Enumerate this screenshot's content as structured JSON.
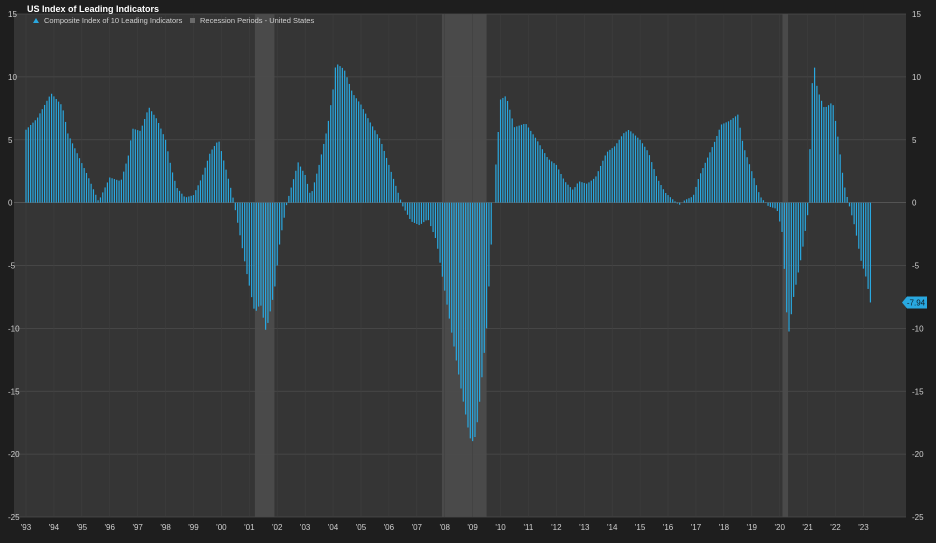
{
  "chart_data": {
    "type": "bar",
    "title": "US Index of Leading Indicators",
    "legend": [
      {
        "label": "Composite Index of 10 Leading Indicators",
        "color": "#29a8e0",
        "marker": "triangle"
      },
      {
        "label": "Recession Periods - United States",
        "color": "#6a6a6a",
        "marker": "square"
      }
    ],
    "legend_placement": "top-left",
    "grid": true,
    "ylim": [
      -25,
      15
    ],
    "yticks": [
      15,
      10,
      5,
      0,
      -5,
      -10,
      -15,
      -20,
      -25
    ],
    "xlim": [
      1993.0,
      2023.45
    ],
    "xticks": [
      {
        "value": 1993,
        "label": "'93"
      },
      {
        "value": 1994,
        "label": "'94"
      },
      {
        "value": 1995,
        "label": "'95"
      },
      {
        "value": 1996,
        "label": "'96"
      },
      {
        "value": 1997,
        "label": "'97"
      },
      {
        "value": 1998,
        "label": "'98"
      },
      {
        "value": 1999,
        "label": "'99"
      },
      {
        "value": 2000,
        "label": "'00"
      },
      {
        "value": 2001,
        "label": "'01"
      },
      {
        "value": 2002,
        "label": "'02"
      },
      {
        "value": 2003,
        "label": "'03"
      },
      {
        "value": 2004,
        "label": "'04"
      },
      {
        "value": 2005,
        "label": "'05"
      },
      {
        "value": 2006,
        "label": "'06"
      },
      {
        "value": 2007,
        "label": "'07"
      },
      {
        "value": 2008,
        "label": "'08"
      },
      {
        "value": 2009,
        "label": "'09"
      },
      {
        "value": 2010,
        "label": "'10"
      },
      {
        "value": 2011,
        "label": "'11"
      },
      {
        "value": 2012,
        "label": "'12"
      },
      {
        "value": 2013,
        "label": "'13"
      },
      {
        "value": 2014,
        "label": "'14"
      },
      {
        "value": 2015,
        "label": "'15"
      },
      {
        "value": 2016,
        "label": "'16"
      },
      {
        "value": 2017,
        "label": "'17"
      },
      {
        "value": 2018,
        "label": "'18"
      },
      {
        "value": 2019,
        "label": "'19"
      },
      {
        "value": 2020,
        "label": "'20"
      },
      {
        "value": 2021,
        "label": "'21"
      },
      {
        "value": 2022,
        "label": "'22"
      },
      {
        "value": 2023,
        "label": "'23"
      }
    ],
    "recessions": [
      {
        "start": 2001.2,
        "end": 2001.9
      },
      {
        "start": 2007.9,
        "end": 2009.5
      },
      {
        "start": 2020.1,
        "end": 2020.3
      }
    ],
    "anchors": [
      [
        1993.0,
        5.8
      ],
      [
        1993.4,
        6.7
      ],
      [
        1993.9,
        8.7
      ],
      [
        1994.3,
        7.7
      ],
      [
        1994.5,
        5.5
      ],
      [
        1995.2,
        2.2
      ],
      [
        1995.6,
        0.1
      ],
      [
        1996.0,
        2.0
      ],
      [
        1996.4,
        1.7
      ],
      [
        1996.7,
        4.0
      ],
      [
        1996.8,
        5.9
      ],
      [
        1997.1,
        5.7
      ],
      [
        1997.4,
        7.6
      ],
      [
        1997.7,
        6.6
      ],
      [
        1998.0,
        5.0
      ],
      [
        1998.2,
        2.8
      ],
      [
        1998.4,
        1.2
      ],
      [
        1998.7,
        0.4
      ],
      [
        1999.0,
        0.6
      ],
      [
        1999.3,
        2.0
      ],
      [
        1999.6,
        4.0
      ],
      [
        1999.9,
        5.0
      ],
      [
        2000.1,
        3.2
      ],
      [
        2000.4,
        0.6
      ],
      [
        2000.7,
        -3.0
      ],
      [
        2000.9,
        -5.5
      ],
      [
        2001.2,
        -8.8
      ],
      [
        2001.4,
        -8.0
      ],
      [
        2001.6,
        -10.3
      ],
      [
        2001.9,
        -7.0
      ],
      [
        2002.1,
        -3.0
      ],
      [
        2002.35,
        0.0
      ],
      [
        2002.6,
        2.0
      ],
      [
        2002.75,
        3.2
      ],
      [
        2003.0,
        2.2
      ],
      [
        2003.2,
        0.5
      ],
      [
        2003.5,
        3.0
      ],
      [
        2003.8,
        6.0
      ],
      [
        2004.0,
        9.0
      ],
      [
        2004.1,
        11.1
      ],
      [
        2004.4,
        10.6
      ],
      [
        2004.7,
        8.7
      ],
      [
        2005.0,
        7.8
      ],
      [
        2005.3,
        6.5
      ],
      [
        2005.7,
        5.0
      ],
      [
        2006.0,
        3.0
      ],
      [
        2006.3,
        1.0
      ],
      [
        2006.5,
        -0.3
      ],
      [
        2006.8,
        -1.5
      ],
      [
        2007.1,
        -1.8
      ],
      [
        2007.4,
        -1.3
      ],
      [
        2007.7,
        -3.0
      ],
      [
        2008.0,
        -7.0
      ],
      [
        2008.3,
        -11.0
      ],
      [
        2008.6,
        -15.0
      ],
      [
        2008.9,
        -18.7
      ],
      [
        2009.05,
        -19.1
      ],
      [
        2009.2,
        -17.0
      ],
      [
        2009.5,
        -10.0
      ],
      [
        2009.65,
        -4.0
      ],
      [
        2009.8,
        2.0
      ],
      [
        2010.0,
        8.2
      ],
      [
        2010.2,
        8.5
      ],
      [
        2010.5,
        6.0
      ],
      [
        2010.9,
        6.3
      ],
      [
        2011.3,
        5.0
      ],
      [
        2011.7,
        3.5
      ],
      [
        2012.0,
        3.0
      ],
      [
        2012.3,
        1.7
      ],
      [
        2012.6,
        1.0
      ],
      [
        2012.8,
        1.7
      ],
      [
        2013.1,
        1.5
      ],
      [
        2013.4,
        2.0
      ],
      [
        2013.8,
        4.0
      ],
      [
        2014.1,
        4.5
      ],
      [
        2014.4,
        5.5
      ],
      [
        2014.6,
        5.8
      ],
      [
        2015.0,
        5.0
      ],
      [
        2015.3,
        4.0
      ],
      [
        2015.6,
        2.0
      ],
      [
        2015.9,
        0.8
      ],
      [
        2016.2,
        0.2
      ],
      [
        2016.4,
        -0.2
      ],
      [
        2016.6,
        0.2
      ],
      [
        2016.9,
        0.5
      ],
      [
        2017.1,
        2.0
      ],
      [
        2017.4,
        3.5
      ],
      [
        2017.7,
        5.0
      ],
      [
        2017.9,
        6.2
      ],
      [
        2018.2,
        6.5
      ],
      [
        2018.5,
        7.0
      ],
      [
        2018.7,
        4.5
      ],
      [
        2019.0,
        2.5
      ],
      [
        2019.3,
        0.5
      ],
      [
        2019.6,
        -0.3
      ],
      [
        2019.9,
        -0.5
      ],
      [
        2020.1,
        -2.5
      ],
      [
        2020.3,
        -10.8
      ],
      [
        2020.5,
        -7.5
      ],
      [
        2020.8,
        -4.0
      ],
      [
        2021.0,
        -1.0
      ],
      [
        2021.2,
        11.6
      ],
      [
        2021.35,
        9.0
      ],
      [
        2021.6,
        7.5
      ],
      [
        2021.9,
        8.0
      ],
      [
        2022.1,
        5.0
      ],
      [
        2022.3,
        1.5
      ],
      [
        2022.5,
        -0.3
      ],
      [
        2022.7,
        -2.0
      ],
      [
        2022.9,
        -4.5
      ],
      [
        2023.1,
        -6.0
      ],
      [
        2023.25,
        -7.94
      ]
    ],
    "last_value": "-7.94"
  }
}
